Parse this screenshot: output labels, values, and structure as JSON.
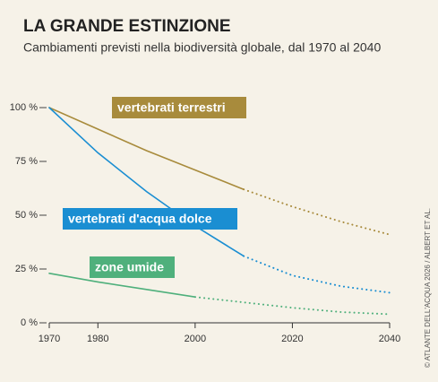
{
  "chart_data": {
    "type": "line",
    "title": "LA GRANDE ESTINZIONE",
    "subtitle": "Cambiamenti previsti nella biodiversità globale, dal 1970 al 2040",
    "credit": "© ATLANTE DELL'ACQUA 2026 / ALBERT ET AL.",
    "x": [
      1970,
      1980,
      1990,
      2000,
      2010,
      2020,
      2030,
      2040
    ],
    "xlim": [
      1970,
      2040
    ],
    "xticks": [
      1970,
      1980,
      2000,
      2020,
      2040
    ],
    "ylim": [
      0,
      100
    ],
    "yticks": [
      {
        "value": 0,
        "label": "0 %"
      },
      {
        "value": 25,
        "label": "25 %"
      },
      {
        "value": 50,
        "label": "50 %"
      },
      {
        "value": 75,
        "label": "75 %"
      },
      {
        "value": 100,
        "label": "100 %"
      }
    ],
    "series": [
      {
        "name": "vertebrati terrestri",
        "color": "#a88b3c",
        "projected_from": 2010,
        "values": [
          100,
          90,
          80,
          71,
          62,
          54,
          47,
          41
        ]
      },
      {
        "name": "vertebrati d'acqua dolce",
        "color": "#1a8ed2",
        "projected_from": 2010,
        "values": [
          100,
          79,
          61,
          45,
          31,
          22,
          17,
          14
        ]
      },
      {
        "name": "zone umide",
        "color": "#4fb07c",
        "projected_from": 2000,
        "values": [
          23,
          19,
          15.5,
          12,
          9.5,
          7,
          5,
          4
        ]
      }
    ]
  }
}
